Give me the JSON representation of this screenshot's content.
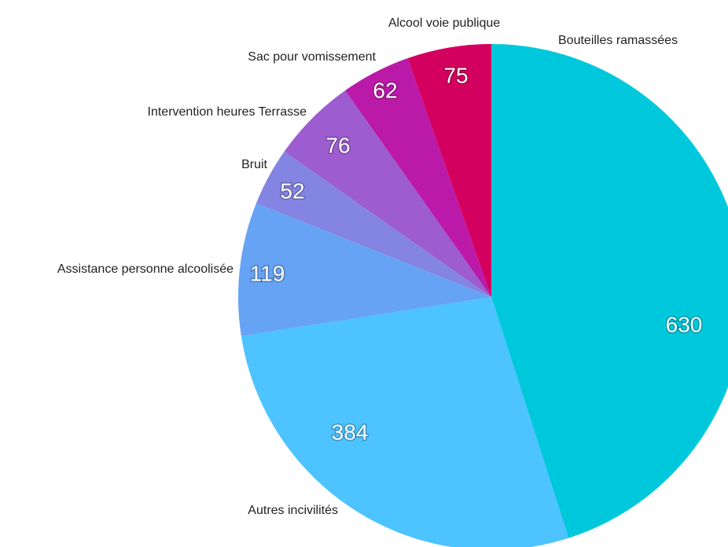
{
  "chart_data": {
    "type": "pie",
    "categories": [
      "Bouteilles ramassées",
      "Alcool voie publique",
      "Sac pour vomissement",
      "Intervention heures Terrasse",
      "Bruit",
      "Assistance personne alcoolisée",
      "Autres incivilités"
    ],
    "values": [
      630,
      384,
      119,
      52,
      76,
      62,
      75
    ],
    "colors": [
      "#00c8dc",
      "#4dc3ff",
      "#66a3f5",
      "#8484e2",
      "#9d5ccf",
      "#bb1aa8",
      "#d4005f"
    ]
  }
}
